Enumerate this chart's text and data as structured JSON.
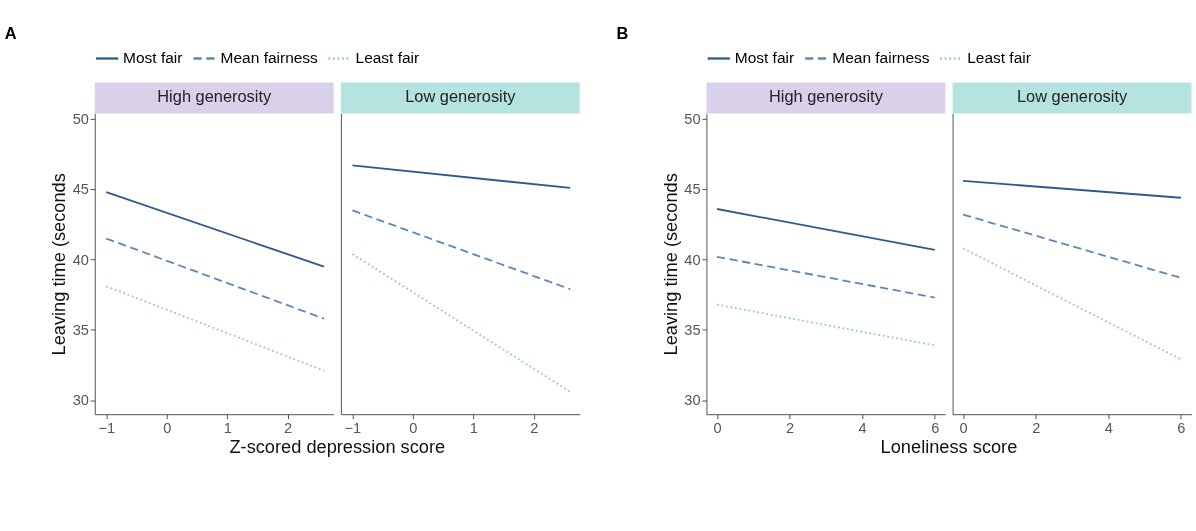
{
  "chart_data": [
    {
      "type": "line",
      "title": "A",
      "subtitle": "High generosity",
      "xlabel": "Z-scored depression score",
      "ylabel": "Leaving time (seconds",
      "x": [
        -1,
        2.6
      ],
      "xlim": [
        -1.19,
        2.76
      ],
      "xticks": [
        -1,
        0,
        1,
        2
      ],
      "ylim": [
        29.0,
        50.4
      ],
      "yticks": [
        30,
        35,
        40,
        45,
        50
      ],
      "grid": false,
      "legend": "top",
      "marker": "none",
      "series": [
        {
          "name": "Most fair",
          "color": "#2b5b8e",
          "line_style": "solid",
          "values": [
            44.8,
            39.5
          ]
        },
        {
          "name": "Mean fairness",
          "color": "#5d89ba",
          "line_style": "dashed",
          "values": [
            41.5,
            35.8
          ]
        },
        {
          "name": "Least fair",
          "color": "#96c4e8",
          "line_style": "dotted",
          "values": [
            38.1,
            32.1
          ]
        }
      ]
    },
    {
      "type": "line",
      "subtitle": "Low generosity",
      "x": [
        -1,
        2.6
      ],
      "xlim": [
        -1.19,
        2.76
      ],
      "xticks": [
        -1,
        0,
        1,
        2
      ],
      "ylim": [
        29.0,
        50.4
      ],
      "tick_labels": "x",
      "grid": false,
      "marker": "none",
      "series": [
        {
          "color": "#2b5b8e",
          "line_style": "solid",
          "values": [
            46.7,
            45.1
          ]
        },
        {
          "color": "#5d89ba",
          "line_style": "dashed",
          "values": [
            43.5,
            37.9
          ]
        },
        {
          "color": "#96c4e8",
          "line_style": "dotted",
          "values": [
            40.4,
            30.6
          ]
        }
      ]
    },
    {
      "type": "line",
      "title": "B",
      "subtitle": "High generosity",
      "xlabel": "Loneliness score",
      "ylabel": "Leaving time (seconds",
      "x": [
        0,
        6
      ],
      "xlim": [
        -0.29,
        6.29
      ],
      "xticks": [
        0,
        2,
        4,
        6
      ],
      "ylim": [
        29.0,
        50.4
      ],
      "yticks": [
        30,
        35,
        40,
        45,
        50
      ],
      "grid": false,
      "legend": "top",
      "marker": "none",
      "series": [
        {
          "name": "Most fair",
          "color": "#2b5b8e",
          "line_style": "solid",
          "values": [
            43.6,
            40.7
          ]
        },
        {
          "name": "Mean fairness",
          "color": "#5d89ba",
          "line_style": "dashed",
          "values": [
            40.2,
            37.3
          ]
        },
        {
          "name": "Least fair",
          "color": "#96c4e8",
          "line_style": "dotted",
          "values": [
            36.8,
            33.9
          ]
        }
      ]
    },
    {
      "type": "line",
      "subtitle": "Low generosity",
      "x": [
        0,
        6
      ],
      "xlim": [
        -0.29,
        6.29
      ],
      "xticks": [
        0,
        2,
        4,
        6
      ],
      "ylim": [
        29.0,
        50.4
      ],
      "tick_labels": "x",
      "grid": false,
      "marker": "none",
      "series": [
        {
          "color": "#2b5b8e",
          "line_style": "solid",
          "values": [
            45.6,
            44.4
          ]
        },
        {
          "color": "#5d89ba",
          "line_style": "dashed",
          "values": [
            43.2,
            38.7
          ]
        },
        {
          "color": "#96c4e8",
          "line_style": "dotted",
          "values": [
            40.8,
            32.9
          ]
        }
      ]
    }
  ]
}
